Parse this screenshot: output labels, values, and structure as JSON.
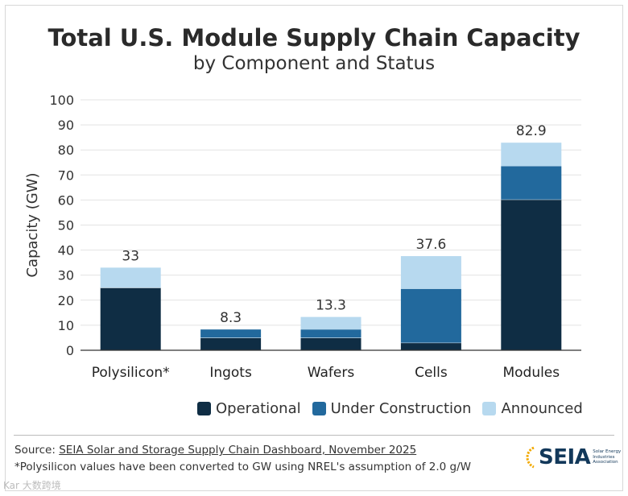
{
  "chart_data": {
    "type": "bar",
    "stacked": true,
    "title": "Total U.S. Module Supply Chain Capacity",
    "subtitle": "by Component and Status",
    "xlabel": "",
    "ylabel": "Capacity (GW)",
    "ylim": [
      0,
      100
    ],
    "yticks": [
      0,
      10,
      20,
      30,
      40,
      50,
      60,
      70,
      80,
      90,
      100
    ],
    "grid": true,
    "categories": [
      "Polysilicon*",
      "Ingots",
      "Wafers",
      "Cells",
      "Modules"
    ],
    "series": [
      {
        "name": "Operational",
        "color": "#0f2d44",
        "values": [
          25,
          5,
          5,
          3,
          60.2
        ]
      },
      {
        "name": "Under Construction",
        "color": "#22699d",
        "values": [
          0,
          3.3,
          3.3,
          21.5,
          13.3
        ]
      },
      {
        "name": "Announced",
        "color": "#b7d9ef",
        "values": [
          8,
          0,
          5,
          13.1,
          9.4
        ]
      }
    ],
    "totals": [
      "33",
      "8.3",
      "13.3",
      "37.6",
      "82.9"
    ],
    "legend_position": "bottom-right"
  },
  "footer": {
    "source_prefix": "Source: ",
    "source_link": "SEIA Solar and Storage Supply Chain Dashboard, November 2025",
    "note": "*Polysilicon values have been converted to GW using NREL's assumption of 2.0 g/W"
  },
  "logo": {
    "text": "SEIA",
    "tagline": "Solar Energy Industries Association"
  },
  "watermark": "Kar 大数跨境"
}
